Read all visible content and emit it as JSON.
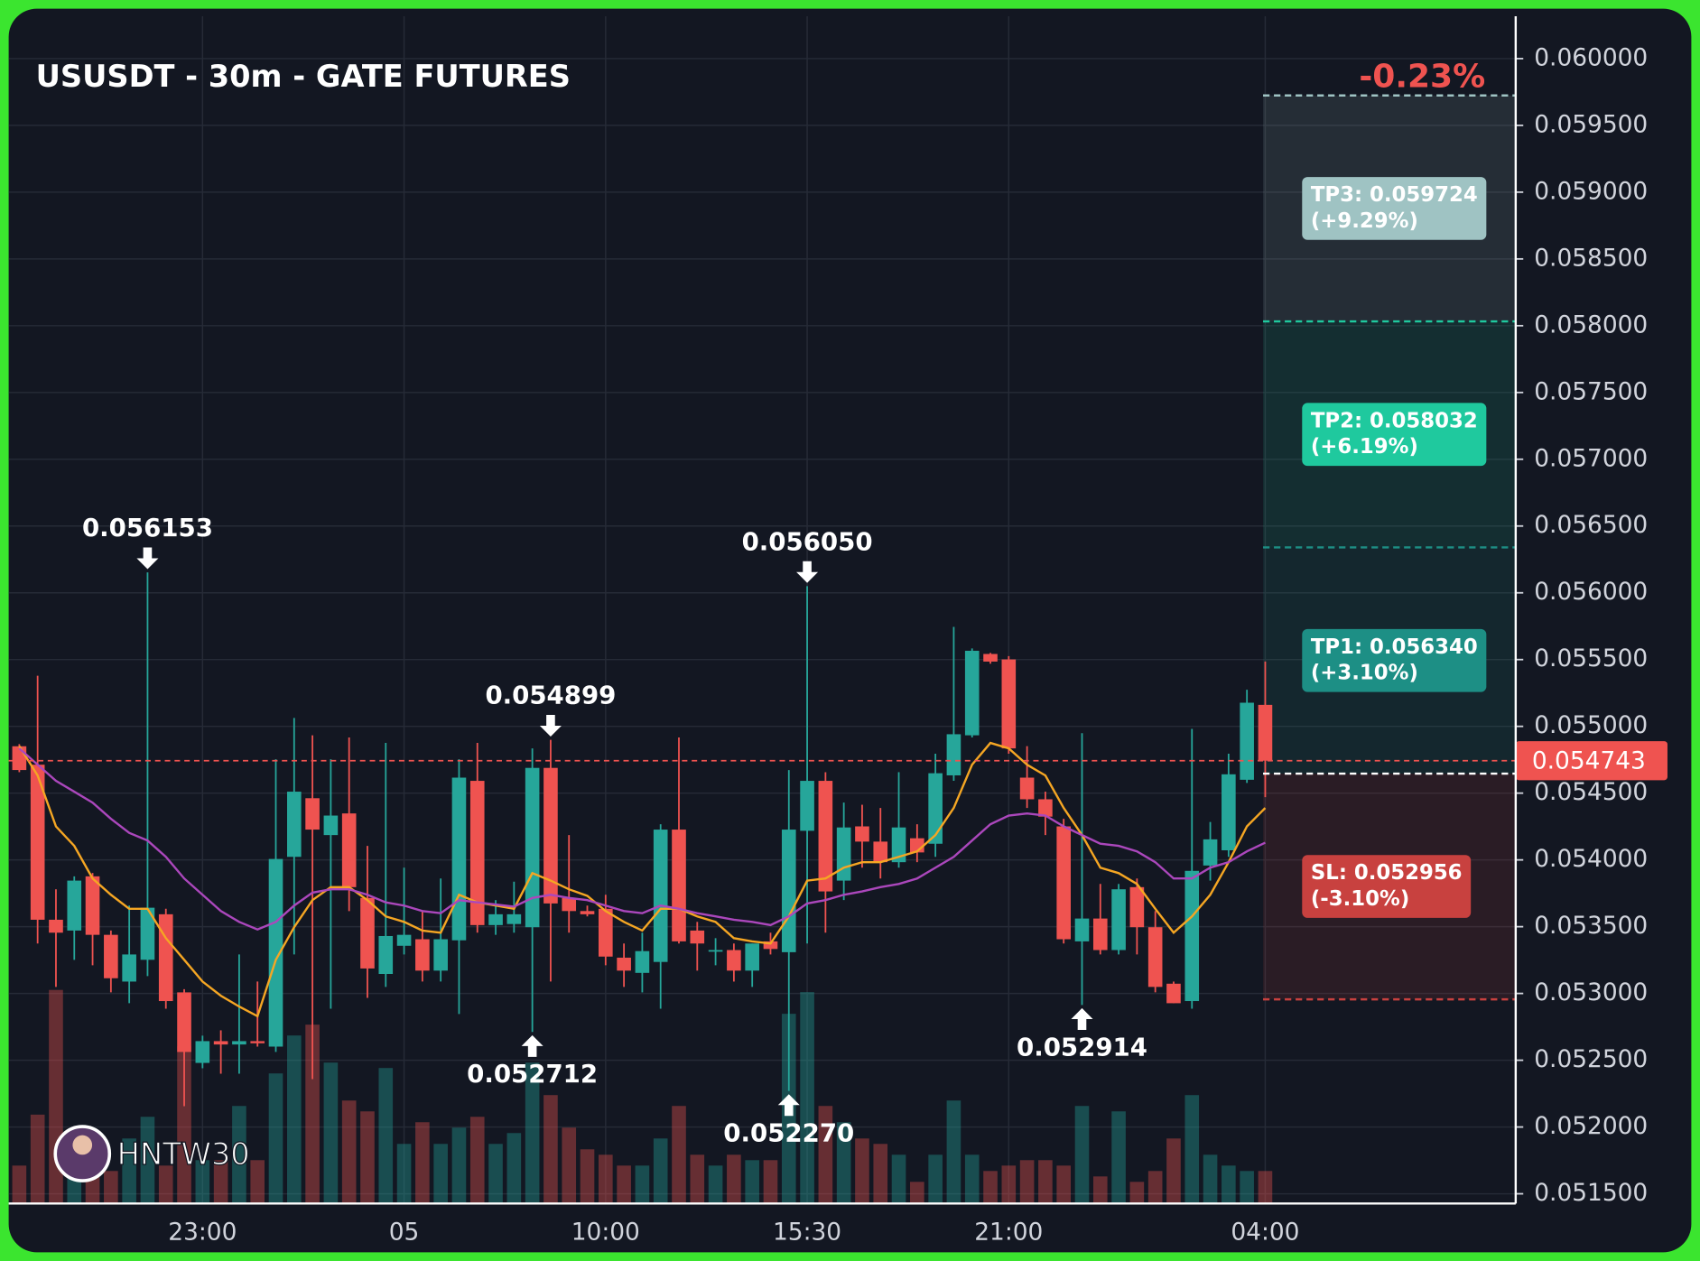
{
  "chart_data": {
    "type": "candlestick",
    "title": "USUSDT - 30m - GATE FUTURES",
    "change_label": "-0.23%",
    "watermark": "HNTW30",
    "up_color": "#26a69a",
    "down_color": "#ef5350",
    "grid": true,
    "categories": [
      null,
      null,
      null,
      null,
      null,
      null,
      null,
      null,
      null,
      null,
      "23:00",
      null,
      null,
      null,
      null,
      null,
      null,
      null,
      null,
      null,
      null,
      "05",
      null,
      null,
      null,
      null,
      null,
      null,
      null,
      null,
      null,
      null,
      "10:00",
      null,
      null,
      null,
      null,
      null,
      null,
      null,
      null,
      null,
      null,
      "15:30",
      null,
      null,
      null,
      null,
      null,
      null,
      null,
      null,
      null,
      null,
      "21:00",
      null,
      null,
      null,
      null,
      null,
      null,
      null,
      null,
      null,
      null,
      null,
      null,
      null,
      "04:00"
    ],
    "open": [
      0.054851,
      0.054713,
      0.053552,
      0.053471,
      0.053877,
      0.053439,
      0.053089,
      0.053252,
      0.053593,
      0.053008,
      0.05248,
      0.052643,
      0.052618,
      0.052643,
      0.052602,
      0.054023,
      0.054462,
      0.054186,
      0.054348,
      0.053715,
      0.053146,
      0.053357,
      0.053406,
      0.053171,
      0.053398,
      0.054592,
      0.053512,
      0.05352,
      0.053496,
      0.054689,
      0.053715,
      0.053617,
      0.053634,
      0.053268,
      0.053154,
      0.053236,
      0.054227,
      0.053471,
      0.053317,
      0.053325,
      0.053171,
      0.05339,
      0.053309,
      0.054218,
      0.054592,
      0.053845,
      0.054251,
      0.054137,
      0.053983,
      0.054162,
      0.054121,
      0.054633,
      0.054933,
      0.055542,
      0.055501,
      0.054616,
      0.054454,
      0.054251,
      0.05339,
      0.053561,
      0.053325,
      0.053796,
      0.053496,
      0.053073,
      0.052943,
      0.053958,
      0.054072,
      0.0546,
      0.055161
    ],
    "high": [
      0.054867,
      0.055379,
      0.05378,
      0.053877,
      0.053902,
      0.053471,
      0.053658,
      0.056153,
      0.053634,
      0.053032,
      0.052684,
      0.052724,
      0.053292,
      0.053089,
      0.054754,
      0.055063,
      0.054933,
      0.054754,
      0.054917,
      0.054105,
      0.054876,
      0.053942,
      0.053617,
      0.053861,
      0.054754,
      0.054876,
      0.053699,
      0.053837,
      0.054835,
      0.054899,
      0.054186,
      0.053658,
      0.053739,
      0.053374,
      0.053455,
      0.054267,
      0.054917,
      0.053536,
      0.053414,
      0.053374,
      0.053374,
      0.053455,
      0.054673,
      0.05605,
      0.054657,
      0.054429,
      0.054413,
      0.054389,
      0.054657,
      0.054267,
      0.054795,
      0.055745,
      0.055583,
      0.05555,
      0.055526,
      0.054852,
      0.054511,
      0.054308,
      0.054949,
      0.05382,
      0.05382,
      0.053861,
      0.053617,
      0.053089,
      0.054981,
      0.054284,
      0.054795,
      0.055274,
      0.055485
    ],
    "low": [
      0.054657,
      0.053374,
      0.053049,
      0.053252,
      0.053211,
      0.053008,
      0.052927,
      0.05313,
      0.052886,
      0.052156,
      0.05244,
      0.052399,
      0.052399,
      0.052602,
      0.052562,
      0.053292,
      0.052359,
      0.052886,
      0.053617,
      0.052967,
      0.053049,
      0.053292,
      0.053089,
      0.053089,
      0.052846,
      0.053455,
      0.053439,
      0.053455,
      0.052712,
      0.053089,
      0.053455,
      0.053577,
      0.053211,
      0.053049,
      0.053008,
      0.052886,
      0.053374,
      0.053171,
      0.053211,
      0.053089,
      0.053049,
      0.053292,
      0.05227,
      0.053374,
      0.053455,
      0.053699,
      0.053942,
      0.053861,
      0.053942,
      0.053983,
      0.054023,
      0.054592,
      0.054917,
      0.055469,
      0.054795,
      0.054389,
      0.054186,
      0.053374,
      0.052914,
      0.053292,
      0.053292,
      0.053292,
      0.053008,
      0.052927,
      0.052886,
      0.053845,
      0.054023,
      0.054576,
      0.05447
    ],
    "close": [
      0.054673,
      0.053552,
      0.053455,
      0.053845,
      0.053439,
      0.053114,
      0.053292,
      0.053642,
      0.052943,
      0.052562,
      0.052643,
      0.052618,
      0.052643,
      0.052627,
      0.054007,
      0.054511,
      0.054227,
      0.054332,
      0.053796,
      0.053187,
      0.05343,
      0.053439,
      0.053171,
      0.053406,
      0.054616,
      0.053512,
      0.053593,
      0.053593,
      0.054689,
      0.053674,
      0.053617,
      0.053593,
      0.053276,
      0.053171,
      0.053317,
      0.054227,
      0.05339,
      0.053374,
      0.053325,
      0.053171,
      0.053374,
      0.053333,
      0.054227,
      0.054592,
      0.053764,
      0.054243,
      0.054137,
      0.053983,
      0.054243,
      0.054056,
      0.054649,
      0.054941,
      0.055566,
      0.055485,
      0.054835,
      0.054454,
      0.054324,
      0.053406,
      0.053561,
      0.053325,
      0.05378,
      0.053496,
      0.053049,
      0.052927,
      0.053918,
      0.054154,
      0.054641,
      0.055177,
      0.054743
    ],
    "volume": [
      35,
      82,
      197,
      60,
      25,
      30,
      60,
      80,
      35,
      145,
      40,
      40,
      90,
      40,
      120,
      155,
      165,
      130,
      95,
      85,
      125,
      55,
      75,
      55,
      70,
      80,
      55,
      65,
      130,
      100,
      70,
      50,
      45,
      35,
      35,
      60,
      90,
      45,
      35,
      45,
      40,
      40,
      175,
      195,
      90,
      75,
      60,
      55,
      45,
      20,
      45,
      95,
      45,
      30,
      35,
      40,
      40,
      35,
      90,
      25,
      85,
      20,
      30,
      60,
      100,
      45,
      35,
      30,
      30
    ],
    "moving_averages": [
      {
        "color": "#f5a623",
        "values": [
          0.054852,
          0.054632,
          0.054251,
          0.054105,
          0.053861,
          0.053739,
          0.053634,
          0.053634,
          0.053414,
          0.053252,
          0.053089,
          0.052983,
          0.052902,
          0.05283,
          0.053252,
          0.053496,
          0.053699,
          0.053796,
          0.053796,
          0.053699,
          0.053577,
          0.053536,
          0.053471,
          0.053455,
          0.053739,
          0.053682,
          0.053658,
          0.053634,
          0.053901,
          0.053845,
          0.05378,
          0.053731,
          0.053617,
          0.053536,
          0.053471,
          0.053634,
          0.053634,
          0.053577,
          0.053536,
          0.053414,
          0.05339,
          0.053374,
          0.053577,
          0.053845,
          0.053861,
          0.053942,
          0.053983,
          0.053983,
          0.054023,
          0.054064,
          0.054186,
          0.054389,
          0.054713,
          0.054876,
          0.054835,
          0.054713,
          0.054632,
          0.054389,
          0.054186,
          0.053942,
          0.053901,
          0.05382,
          0.053634,
          0.053455,
          0.053577,
          0.053739,
          0.053983,
          0.054251,
          0.054389
        ]
      },
      {
        "color": "#ab47bc",
        "values": [
          0.054835,
          0.054713,
          0.054592,
          0.054511,
          0.054429,
          0.054308,
          0.054202,
          0.054145,
          0.054023,
          0.053861,
          0.053739,
          0.053617,
          0.053536,
          0.053479,
          0.053536,
          0.053658,
          0.053755,
          0.05378,
          0.05378,
          0.053739,
          0.053682,
          0.053658,
          0.053617,
          0.053601,
          0.053699,
          0.053682,
          0.053666,
          0.05365,
          0.053715,
          0.053739,
          0.053715,
          0.053699,
          0.053658,
          0.053617,
          0.053601,
          0.053658,
          0.053634,
          0.053601,
          0.053577,
          0.053552,
          0.053536,
          0.053512,
          0.053577,
          0.053674,
          0.053699,
          0.053739,
          0.053764,
          0.053796,
          0.05382,
          0.053861,
          0.053942,
          0.054023,
          0.054145,
          0.054267,
          0.054332,
          0.054348,
          0.054332,
          0.054251,
          0.054186,
          0.054121,
          0.054105,
          0.054064,
          0.053983,
          0.053861,
          0.053861,
          0.053942,
          0.053983,
          0.054064,
          0.054129
        ]
      }
    ],
    "annotations": [
      {
        "kind": "high",
        "value": 0.056153,
        "label": "0.056153"
      },
      {
        "kind": "high",
        "value": 0.054899,
        "label": "0.054899"
      },
      {
        "kind": "high",
        "value": 0.05605,
        "label": "0.056050"
      },
      {
        "kind": "low",
        "value": 0.052712,
        "label": "0.052712"
      },
      {
        "kind": "low",
        "value": 0.05227,
        "label": "0.052270"
      },
      {
        "kind": "low",
        "value": 0.052914,
        "label": "0.052914"
      }
    ],
    "entry": 0.054646,
    "levels": [
      {
        "label": "TP3: 0.059724",
        "change": "(+9.29%)",
        "value": 0.059724,
        "color": "#9fc3c3"
      },
      {
        "label": "TP2: 0.058032",
        "change": "(+6.19%)",
        "value": 0.058032,
        "color": "#1fc99e"
      },
      {
        "label": "TP1: 0.056340",
        "change": "(+3.10%)",
        "value": 0.05634,
        "color": "#1d8f85"
      },
      {
        "label": "SL: 0.052956",
        "change": "(-3.10%)",
        "value": 0.052956,
        "color": "#c8413f"
      }
    ],
    "ylim": [
      0.051427,
      0.060317
    ],
    "yticks": [
      {
        "value": 0.0515,
        "label": "0.051500"
      },
      {
        "value": 0.052,
        "label": "0.052000"
      },
      {
        "value": 0.0525,
        "label": "0.052500"
      },
      {
        "value": 0.053,
        "label": "0.053000"
      },
      {
        "value": 0.0535,
        "label": "0.053500"
      },
      {
        "value": 0.054,
        "label": "0.054000"
      },
      {
        "value": 0.0545,
        "label": "0.054500"
      },
      {
        "value": 0.055,
        "label": "0.055000"
      },
      {
        "value": 0.0555,
        "label": "0.055500"
      },
      {
        "value": 0.056,
        "label": "0.056000"
      },
      {
        "value": 0.0565,
        "label": "0.056500"
      },
      {
        "value": 0.057,
        "label": "0.057000"
      },
      {
        "value": 0.0575,
        "label": "0.057500"
      },
      {
        "value": 0.058,
        "label": "0.058000"
      },
      {
        "value": 0.0585,
        "label": "0.058500"
      },
      {
        "value": 0.059,
        "label": "0.059000"
      },
      {
        "value": 0.0595,
        "label": "0.059500"
      },
      {
        "value": 0.06,
        "label": "0.060000"
      }
    ]
  }
}
